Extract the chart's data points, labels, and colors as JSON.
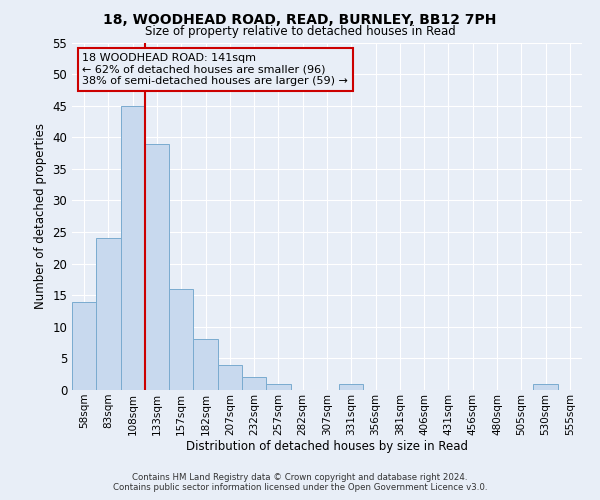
{
  "title1": "18, WOODHEAD ROAD, READ, BURNLEY, BB12 7PH",
  "title2": "Size of property relative to detached houses in Read",
  "xlabel": "Distribution of detached houses by size in Read",
  "ylabel": "Number of detached properties",
  "bin_labels": [
    "58sqm",
    "83sqm",
    "108sqm",
    "133sqm",
    "157sqm",
    "182sqm",
    "207sqm",
    "232sqm",
    "257sqm",
    "282sqm",
    "307sqm",
    "331sqm",
    "356sqm",
    "381sqm",
    "406sqm",
    "431sqm",
    "456sqm",
    "480sqm",
    "505sqm",
    "530sqm",
    "555sqm"
  ],
  "bar_values": [
    14,
    24,
    45,
    39,
    16,
    8,
    4,
    2,
    1,
    0,
    0,
    1,
    0,
    0,
    0,
    0,
    0,
    0,
    0,
    1,
    0
  ],
  "bar_color": "#c8d9ee",
  "bar_edge_color": "#7aabcf",
  "vline_x_index": 3,
  "vline_color": "#cc0000",
  "ylim": [
    0,
    55
  ],
  "yticks": [
    0,
    5,
    10,
    15,
    20,
    25,
    30,
    35,
    40,
    45,
    50,
    55
  ],
  "annotation_title": "18 WOODHEAD ROAD: 141sqm",
  "annotation_line1": "← 62% of detached houses are smaller (96)",
  "annotation_line2": "38% of semi-detached houses are larger (59) →",
  "annotation_box_color": "#cc0000",
  "footer_line1": "Contains HM Land Registry data © Crown copyright and database right 2024.",
  "footer_line2": "Contains public sector information licensed under the Open Government Licence v3.0.",
  "bg_color": "#e8eef7",
  "grid_color": "#ffffff"
}
